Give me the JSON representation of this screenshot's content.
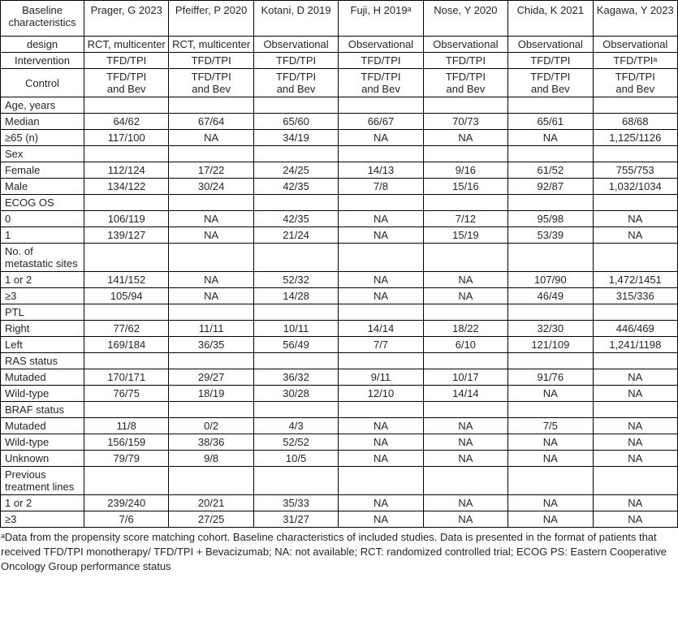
{
  "table": {
    "columns": [
      "Baseline characteristics",
      "Prager, G 2023",
      "Pfeiffer, P 2020",
      "Kotani, D 2019",
      "Fuji, H 2019ᵃ",
      "Nose, Y 2020",
      "Chida, K 2021",
      "Kagawa, Y 2023"
    ],
    "meta_rows": [
      {
        "label": "design",
        "values": [
          "RCT, multicenter",
          "RCT, multicenter",
          "Observational",
          "Observational",
          "Observational",
          "Observational",
          "Observational"
        ]
      },
      {
        "label": "Intervention",
        "values": [
          "TFD/TPI",
          "TFD/TPI",
          "TFD/TPI",
          "TFD/TPI",
          "TFD/TPI",
          "TFD/TPI",
          "TFD/TPIᵃ"
        ]
      },
      {
        "label": "Control",
        "values": [
          "TFD/TPI\nand Bev",
          "TFD/TPI\nand Bev",
          "TFD/TPI\nand Bev",
          "TFD/TPI\nand Bev",
          "TFD/TPI\nand Bev",
          "TFD/TPI\nand Bev",
          "TFD/TPI\nand Bev"
        ]
      }
    ],
    "rows": [
      {
        "label": "Age, years",
        "section": true,
        "values": [
          "",
          "",
          "",
          "",
          "",
          "",
          ""
        ]
      },
      {
        "label": "Median",
        "section": false,
        "values": [
          "64/62",
          "67/64",
          "65/60",
          "66/67",
          "70/73",
          "65/61",
          "68/68"
        ]
      },
      {
        "label": "≥65 (n)",
        "section": false,
        "values": [
          "117/100",
          "NA",
          "34/19",
          "NA",
          "NA",
          "NA",
          "1,125/1126"
        ]
      },
      {
        "label": "Sex",
        "section": true,
        "values": [
          "",
          "",
          "",
          "",
          "",
          "",
          ""
        ]
      },
      {
        "label": "Female",
        "section": false,
        "values": [
          "112/124",
          "17/22",
          "24/25",
          "14/13",
          "9/16",
          "61/52",
          "755/753"
        ]
      },
      {
        "label": "Male",
        "section": false,
        "values": [
          "134/122",
          "30/24",
          "42/35",
          "7/8",
          "15/16",
          "92/87",
          "1,032/1034"
        ]
      },
      {
        "label": "ECOG OS",
        "section": true,
        "values": [
          "",
          "",
          "",
          "",
          "",
          "",
          ""
        ]
      },
      {
        "label": "0",
        "section": false,
        "values": [
          "106/119",
          "NA",
          "42/35",
          "NA",
          "7/12",
          "95/98",
          "NA"
        ]
      },
      {
        "label": "1",
        "section": false,
        "values": [
          "139/127",
          "NA",
          "21/24",
          "NA",
          "15/19",
          "53/39",
          "NA"
        ]
      },
      {
        "label": "No. of metastatic sites",
        "section": true,
        "values": [
          "",
          "",
          "",
          "",
          "",
          "",
          ""
        ]
      },
      {
        "label": "1 or 2",
        "section": false,
        "values": [
          "141/152",
          "NA",
          "52/32",
          "NA",
          "NA",
          "107/90",
          "1,472/1451"
        ]
      },
      {
        "label": "≥3",
        "section": false,
        "values": [
          "105/94",
          "NA",
          "14/28",
          "NA",
          "NA",
          "46/49",
          "315/336"
        ]
      },
      {
        "label": "PTL",
        "section": true,
        "values": [
          "",
          "",
          "",
          "",
          "",
          "",
          ""
        ]
      },
      {
        "label": "Right",
        "section": false,
        "values": [
          "77/62",
          "11/11",
          "10/11",
          "14/14",
          "18/22",
          "32/30",
          "446/469"
        ]
      },
      {
        "label": "Left",
        "section": false,
        "values": [
          "169/184",
          "36/35",
          "56/49",
          "7/7",
          "6/10",
          "121/109",
          "1,241/1198"
        ]
      },
      {
        "label": "RAS status",
        "section": true,
        "values": [
          "",
          "",
          "",
          "",
          "",
          "",
          ""
        ]
      },
      {
        "label": "Mutaded",
        "section": false,
        "values": [
          "170/171",
          "29/27",
          "36/32",
          "9/11",
          "10/17",
          "91/76",
          "NA"
        ]
      },
      {
        "label": "Wild-type",
        "section": false,
        "values": [
          "76/75",
          "18/19",
          "30/28",
          "12/10",
          "14/14",
          "NA",
          "NA"
        ]
      },
      {
        "label": "BRAF status",
        "section": true,
        "values": [
          "",
          "",
          "",
          "",
          "",
          "",
          ""
        ]
      },
      {
        "label": "Mutaded",
        "section": false,
        "values": [
          "11/8",
          "0/2",
          "4/3",
          "NA",
          "NA",
          "7/5",
          "NA"
        ]
      },
      {
        "label": "Wild-type",
        "section": false,
        "values": [
          "156/159",
          "38/36",
          "52/52",
          "NA",
          "NA",
          "NA",
          "NA"
        ]
      },
      {
        "label": "Unknown",
        "section": false,
        "values": [
          "79/79",
          "9/8",
          "10/5",
          "NA",
          "NA",
          "NA",
          "NA"
        ]
      },
      {
        "label": "Previous treatment lines",
        "section": true,
        "values": [
          "",
          "",
          "",
          "",
          "",
          "",
          ""
        ]
      },
      {
        "label": "1 or 2",
        "section": false,
        "values": [
          "239/240",
          "20/21",
          "35/33",
          "NA",
          "NA",
          "NA",
          "NA"
        ]
      },
      {
        "label": "≥3",
        "section": false,
        "values": [
          "7/6",
          "27/25",
          "31/27",
          "NA",
          "NA",
          "NA",
          "NA"
        ]
      }
    ]
  },
  "footnote": "ᵃData from the propensity score matching cohort. Baseline characteristics of included studies. Data is presented in the format of patients that received TFD/TPI monotherapy/ TFD/TPI + Bevacizumab; NA: not available; RCT: randomized controlled trial; ECOG PS: Eastern Cooperative Oncology Group performance status",
  "colors": {
    "text": "#1f2230",
    "border": "#000000",
    "background": "#ffffff"
  }
}
